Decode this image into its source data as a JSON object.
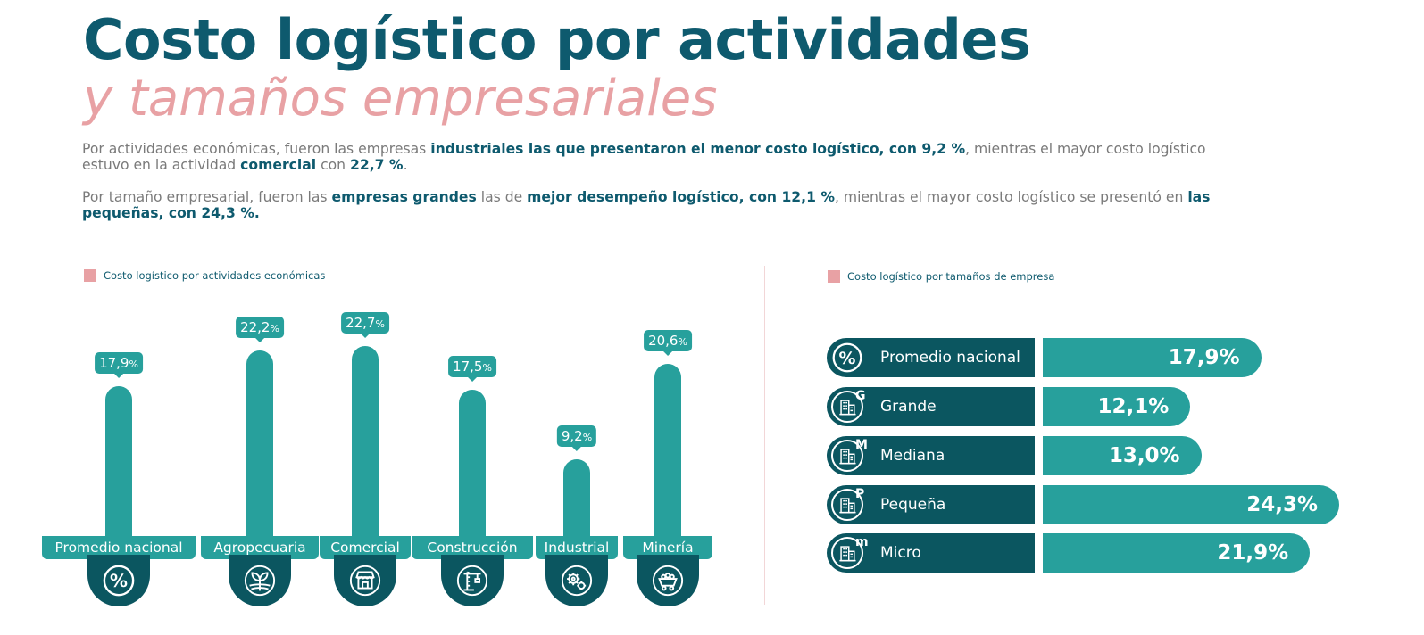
{
  "header": {
    "title_line1": "Costo logístico por actividades",
    "title_line2": "y tamaños empresariales"
  },
  "paragraph1": {
    "t1": "Por actividades económicas, fueron las empresas ",
    "b1": "industriales las que presentaron el menor costo logístico, con 9,2 %",
    "t2": ", mientras el mayor costo logístico estuvo en la actividad ",
    "b2": "comercial",
    "t3": " con ",
    "b3": "22,7 %",
    "t4": "."
  },
  "paragraph2": {
    "t1": "Por tamaño empresarial, fueron las ",
    "b1": "empresas grandes",
    "t2": " las de ",
    "b2": "mejor desempeño logístico, con 12,1 %",
    "t3": ", mientras el mayor costo logístico se presentó en ",
    "b3": "las pequeñas, con 24,3 %."
  },
  "colors": {
    "teal": "#27a09c",
    "dark_teal": "#0b5660",
    "title": "#0e5a6e",
    "pink": "#e8a1a4"
  },
  "chart_data": [
    {
      "type": "bar",
      "title": "Costo logístico por actividades económicas",
      "unit": "%",
      "categories": [
        "Promedio nacional",
        "Agropecuaria",
        "Comercial",
        "Construcción",
        "Industrial",
        "Minería"
      ],
      "values": [
        17.9,
        22.2,
        22.7,
        17.5,
        9.2,
        20.6
      ],
      "labels": [
        "17,9",
        "22,2",
        "22,7",
        "17,5",
        "9,2",
        "20,6"
      ],
      "icons": [
        "percent-icon",
        "plant-icon",
        "store-icon",
        "crane-icon",
        "gears-icon",
        "mining-cart-icon"
      ],
      "ylim": [
        0,
        24
      ]
    },
    {
      "type": "bar",
      "orientation": "horizontal",
      "title": "Costo logístico por tamaños de empresa",
      "unit": "%",
      "categories": [
        "Promedio nacional",
        "Grande",
        "Mediana",
        "Pequeña",
        "Micro"
      ],
      "values": [
        17.9,
        12.1,
        13.0,
        24.3,
        21.9
      ],
      "labels": [
        "17,9%",
        "12,1%",
        "13,0%",
        "24,3%",
        "21,9%"
      ],
      "letters": [
        "",
        "G",
        "M",
        "P",
        "m"
      ],
      "icons": [
        "percent-icon",
        "building-icon",
        "building-icon",
        "building-icon",
        "building-icon"
      ],
      "xlim": [
        0,
        24.3
      ]
    }
  ]
}
